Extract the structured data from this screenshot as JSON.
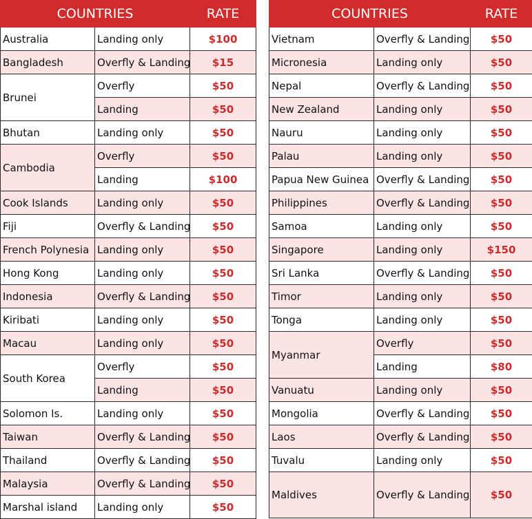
{
  "colors": {
    "header_bg": "#d22b2b",
    "row_alt_bg": "#fce4e4",
    "rate_text": "#cc2b2b"
  },
  "left": {
    "headers": {
      "country": "COUNTRIES",
      "rate": "RATE"
    },
    "groups": [
      {
        "country": "Australia",
        "bg": "odd",
        "rows": [
          {
            "type": "Landing only",
            "rate": "$100"
          }
        ]
      },
      {
        "country": "Bangladesh",
        "bg": "even",
        "rows": [
          {
            "type": "Overfly & Landing",
            "rate": "$15"
          }
        ]
      },
      {
        "country": "Brunei",
        "bg": "odd",
        "rows": [
          {
            "type": "Overfly",
            "rate": "$50",
            "bg": "odd"
          },
          {
            "type": "Landing",
            "rate": "$50",
            "bg": "even"
          }
        ]
      },
      {
        "country": "Bhutan",
        "bg": "odd",
        "rows": [
          {
            "type": "Landing only",
            "rate": "$50"
          }
        ]
      },
      {
        "country": "Cambodia",
        "bg": "even",
        "rows": [
          {
            "type": "Overfly",
            "rate": "$50",
            "bg": "even"
          },
          {
            "type": "Landing",
            "rate": "$100",
            "bg": "odd"
          }
        ]
      },
      {
        "country": "Cook Islands",
        "bg": "even",
        "rows": [
          {
            "type": "Landing only",
            "rate": "$50"
          }
        ]
      },
      {
        "country": "Fiji",
        "bg": "odd",
        "rows": [
          {
            "type": "Overfly & Landing",
            "rate": "$50"
          }
        ]
      },
      {
        "country": "French Polynesia",
        "bg": "even",
        "rows": [
          {
            "type": "Landing only",
            "rate": "$50"
          }
        ]
      },
      {
        "country": "Hong Kong",
        "bg": "odd",
        "rows": [
          {
            "type": "Landing only",
            "rate": "$50"
          }
        ]
      },
      {
        "country": "Indonesia",
        "bg": "even",
        "rows": [
          {
            "type": "Overfly & Landing",
            "rate": "$50"
          }
        ]
      },
      {
        "country": "Kiribati",
        "bg": "odd",
        "rows": [
          {
            "type": "Landing only",
            "rate": "$50"
          }
        ]
      },
      {
        "country": "Macau",
        "bg": "even",
        "rows": [
          {
            "type": "Landing only",
            "rate": "$50"
          }
        ]
      },
      {
        "country": "South Korea",
        "bg": "odd",
        "rows": [
          {
            "type": "Overfly",
            "rate": "$50",
            "bg": "odd"
          },
          {
            "type": "Landing",
            "rate": "$50",
            "bg": "even"
          }
        ]
      },
      {
        "country": "Solomon Is.",
        "bg": "odd",
        "rows": [
          {
            "type": "Landing only",
            "rate": "$50"
          }
        ]
      },
      {
        "country": "Taiwan",
        "bg": "even",
        "rows": [
          {
            "type": "Overfly & Landing",
            "rate": "$50"
          }
        ]
      },
      {
        "country": "Thailand",
        "bg": "odd",
        "rows": [
          {
            "type": "Overfly & Landing",
            "rate": "$50"
          }
        ]
      },
      {
        "country": "Malaysia",
        "bg": "even",
        "rows": [
          {
            "type": "Overfly & Landing",
            "rate": "$50"
          }
        ]
      },
      {
        "country": "Marshal island",
        "bg": "odd",
        "rows": [
          {
            "type": "Landing only",
            "rate": "$50"
          }
        ]
      }
    ]
  },
  "right": {
    "headers": {
      "country": "COUNTRIES",
      "rate": "RATE"
    },
    "groups": [
      {
        "country": "Vietnam",
        "bg": "odd",
        "rows": [
          {
            "type": "Overfly & Landing",
            "rate": "$50"
          }
        ]
      },
      {
        "country": "Micronesia",
        "bg": "even",
        "rows": [
          {
            "type": "Landing only",
            "rate": "$50"
          }
        ]
      },
      {
        "country": "Nepal",
        "bg": "odd",
        "rows": [
          {
            "type": "Overfly & Landing",
            "rate": "$50"
          }
        ]
      },
      {
        "country": "New Zealand",
        "bg": "even",
        "rows": [
          {
            "type": "Landing only",
            "rate": "$50"
          }
        ]
      },
      {
        "country": "Nauru",
        "bg": "odd",
        "rows": [
          {
            "type": "Landing only",
            "rate": "$50"
          }
        ]
      },
      {
        "country": "Palau",
        "bg": "even",
        "rows": [
          {
            "type": "Landing only",
            "rate": "$50"
          }
        ]
      },
      {
        "country": "Papua New Guinea",
        "bg": "odd",
        "rows": [
          {
            "type": "Overfly & Landing",
            "rate": "$50"
          }
        ]
      },
      {
        "country": "Philippines",
        "bg": "even",
        "rows": [
          {
            "type": "Overfly & Landing",
            "rate": "$50"
          }
        ]
      },
      {
        "country": "Samoa",
        "bg": "odd",
        "rows": [
          {
            "type": "Landing only",
            "rate": "$50"
          }
        ]
      },
      {
        "country": "Singapore",
        "bg": "even",
        "rows": [
          {
            "type": "Landing only",
            "rate": "$150"
          }
        ]
      },
      {
        "country": "Sri Lanka",
        "bg": "odd",
        "rows": [
          {
            "type": "Overfly & Landing",
            "rate": "$50"
          }
        ]
      },
      {
        "country": "Timor",
        "bg": "even",
        "rows": [
          {
            "type": "Landing only",
            "rate": "$50"
          }
        ]
      },
      {
        "country": "Tonga",
        "bg": "odd",
        "rows": [
          {
            "type": "Landing only",
            "rate": "$50"
          }
        ]
      },
      {
        "country": "Myanmar",
        "bg": "even",
        "rows": [
          {
            "type": "Overfly",
            "rate": "$50",
            "bg": "even"
          },
          {
            "type": "Landing",
            "rate": "$80",
            "bg": "odd"
          }
        ]
      },
      {
        "country": "Vanuatu",
        "bg": "even",
        "rows": [
          {
            "type": "Landing only",
            "rate": "$50"
          }
        ]
      },
      {
        "country": "Mongolia",
        "bg": "odd",
        "rows": [
          {
            "type": "Overfly & Landing",
            "rate": "$50"
          }
        ]
      },
      {
        "country": "Laos",
        "bg": "even",
        "rows": [
          {
            "type": "Overfly & Landing",
            "rate": "$50"
          }
        ]
      },
      {
        "country": "Tuvalu",
        "bg": "odd",
        "rows": [
          {
            "type": "Landing only",
            "rate": "$50"
          }
        ]
      },
      {
        "country": "Maldives",
        "bg": "even",
        "rows": [
          {
            "type": "Overfly & Landing",
            "rate": "$50",
            "tall": true
          }
        ]
      }
    ]
  }
}
